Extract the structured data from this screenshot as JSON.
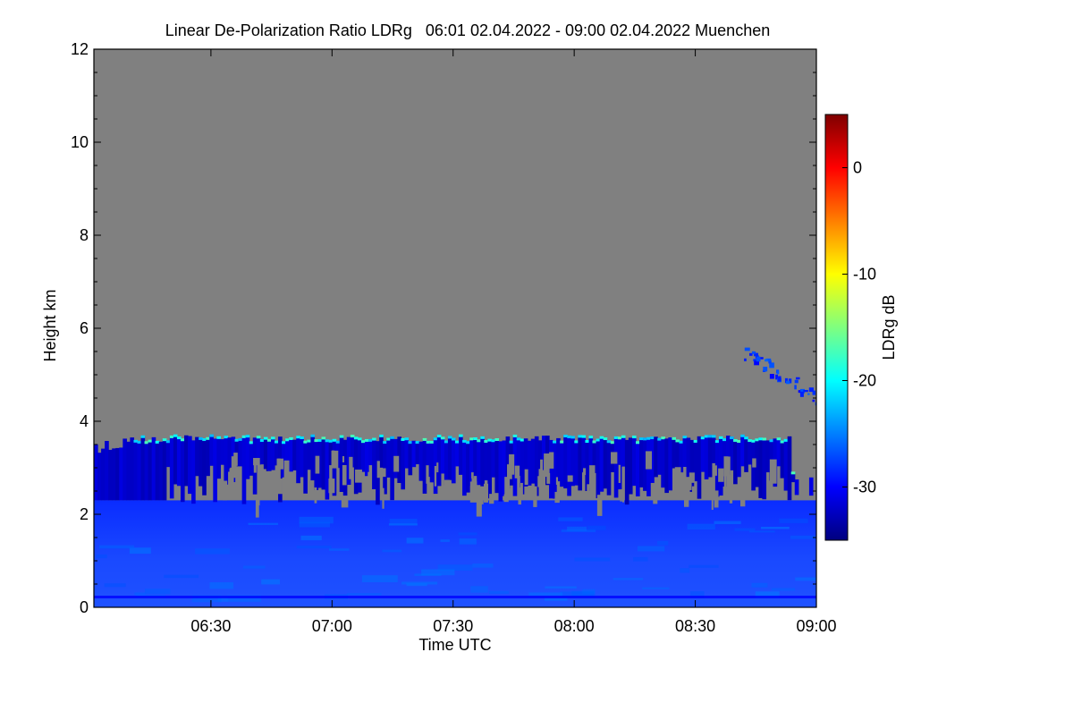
{
  "chart_data": {
    "type": "heatmap",
    "title": "Linear De-Polarization Ratio LDRg   06:01 02.04.2022 - 09:00 02.04.2022 Muenchen",
    "xlabel": "Time UTC",
    "ylabel": "Height km",
    "xlim_hours": [
      6.0167,
      9.0
    ],
    "ylim": [
      0,
      12
    ],
    "x_ticks": [
      {
        "hour": 6.5,
        "label": "06:30"
      },
      {
        "hour": 7.0,
        "label": "07:00"
      },
      {
        "hour": 7.5,
        "label": "07:30"
      },
      {
        "hour": 8.0,
        "label": "08:00"
      },
      {
        "hour": 8.5,
        "label": "08:30"
      },
      {
        "hour": 9.0,
        "label": "09:00"
      }
    ],
    "y_ticks": [
      {
        "value": 0,
        "label": "0"
      },
      {
        "value": 2,
        "label": "2"
      },
      {
        "value": 4,
        "label": "4"
      },
      {
        "value": 6,
        "label": "6"
      },
      {
        "value": 8,
        "label": "8"
      },
      {
        "value": 10,
        "label": "10"
      },
      {
        "value": 12,
        "label": "12"
      }
    ],
    "colorbar": {
      "label": "LDRg dB",
      "range": [
        -35,
        5
      ],
      "ticks": [
        {
          "value": 0,
          "label": "0"
        },
        {
          "value": -10,
          "label": "-10"
        },
        {
          "value": -20,
          "label": "-20"
        },
        {
          "value": -30,
          "label": "-30"
        }
      ],
      "colormap": [
        "#00007f",
        "#0000ff",
        "#007fff",
        "#00ffff",
        "#7fff7f",
        "#ffff00",
        "#ff7f00",
        "#ff0000",
        "#7f0000"
      ]
    },
    "background_color": "#808080",
    "cloud_layer": {
      "top_km_approx": 3.6,
      "typical_ldr_db": -31,
      "top_edge_ldr_db": -20
    },
    "boundary_layer": {
      "top_km_approx": 2.3,
      "typical_ldr_db": -29
    },
    "upper_feature": {
      "hours": [
        8.7,
        9.0
      ],
      "heights_km": [
        4.5,
        5.7
      ],
      "typical_ldr_db": -28
    }
  }
}
